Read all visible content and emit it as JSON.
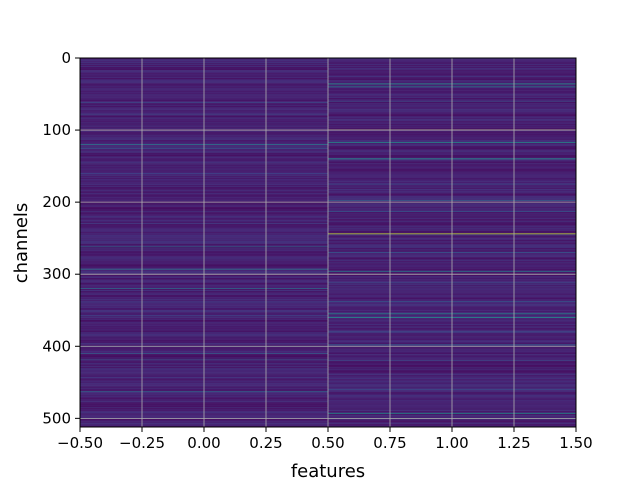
{
  "chart_data": {
    "type": "heatmap",
    "title": "",
    "xlabel": "features",
    "ylabel": "channels",
    "xlim": [
      -0.5,
      1.5
    ],
    "ylim": [
      512,
      0
    ],
    "x_ticks": [
      -0.5,
      -0.25,
      0.0,
      0.25,
      0.5,
      0.75,
      1.0,
      1.25,
      1.5
    ],
    "x_tick_labels": [
      "−0.50",
      "−0.25",
      "0.00",
      "0.25",
      "0.50",
      "0.75",
      "1.00",
      "1.25",
      "1.50"
    ],
    "y_ticks": [
      0,
      100,
      200,
      300,
      400,
      500
    ],
    "y_tick_labels": [
      "0",
      "100",
      "200",
      "300",
      "400",
      "500"
    ],
    "grid": true,
    "colormap": "viridis",
    "columns": [
      0,
      1
    ],
    "rows": 512,
    "base_level": 0.12,
    "highlights": [
      {
        "column": 0,
        "row": 62,
        "value": 0.3
      },
      {
        "column": 0,
        "row": 78,
        "value": 0.28
      },
      {
        "column": 0,
        "row": 120,
        "value": 0.45
      },
      {
        "column": 0,
        "row": 125,
        "value": 0.38
      },
      {
        "column": 0,
        "row": 160,
        "value": 0.25
      },
      {
        "column": 0,
        "row": 230,
        "value": 0.22
      },
      {
        "column": 0,
        "row": 262,
        "value": 0.4
      },
      {
        "column": 0,
        "row": 293,
        "value": 0.45
      },
      {
        "column": 0,
        "row": 300,
        "value": 0.32
      },
      {
        "column": 0,
        "row": 320,
        "value": 0.42
      },
      {
        "column": 0,
        "row": 358,
        "value": 0.25
      },
      {
        "column": 0,
        "row": 400,
        "value": 0.28
      },
      {
        "column": 0,
        "row": 410,
        "value": 0.38
      },
      {
        "column": 0,
        "row": 418,
        "value": 0.3
      },
      {
        "column": 0,
        "row": 463,
        "value": 0.4
      },
      {
        "column": 0,
        "row": 500,
        "value": 0.28
      },
      {
        "column": 1,
        "row": 36,
        "value": 0.6
      },
      {
        "column": 1,
        "row": 40,
        "value": 0.45
      },
      {
        "column": 1,
        "row": 60,
        "value": 0.3
      },
      {
        "column": 1,
        "row": 100,
        "value": 0.9
      },
      {
        "column": 1,
        "row": 117,
        "value": 0.55
      },
      {
        "column": 1,
        "row": 140,
        "value": 0.62
      },
      {
        "column": 1,
        "row": 175,
        "value": 0.3
      },
      {
        "column": 1,
        "row": 198,
        "value": 0.4
      },
      {
        "column": 1,
        "row": 213,
        "value": 0.35
      },
      {
        "column": 1,
        "row": 244,
        "value": 0.92
      },
      {
        "column": 1,
        "row": 270,
        "value": 0.35
      },
      {
        "column": 1,
        "row": 296,
        "value": 0.45
      },
      {
        "column": 1,
        "row": 312,
        "value": 0.32
      },
      {
        "column": 1,
        "row": 338,
        "value": 0.35
      },
      {
        "column": 1,
        "row": 355,
        "value": 0.55
      },
      {
        "column": 1,
        "row": 360,
        "value": 0.5
      },
      {
        "column": 1,
        "row": 380,
        "value": 0.3
      },
      {
        "column": 1,
        "row": 398,
        "value": 0.4
      },
      {
        "column": 1,
        "row": 420,
        "value": 0.28
      },
      {
        "column": 1,
        "row": 460,
        "value": 0.3
      },
      {
        "column": 1,
        "row": 493,
        "value": 0.5
      },
      {
        "column": 1,
        "row": 500,
        "value": 0.45
      }
    ]
  }
}
